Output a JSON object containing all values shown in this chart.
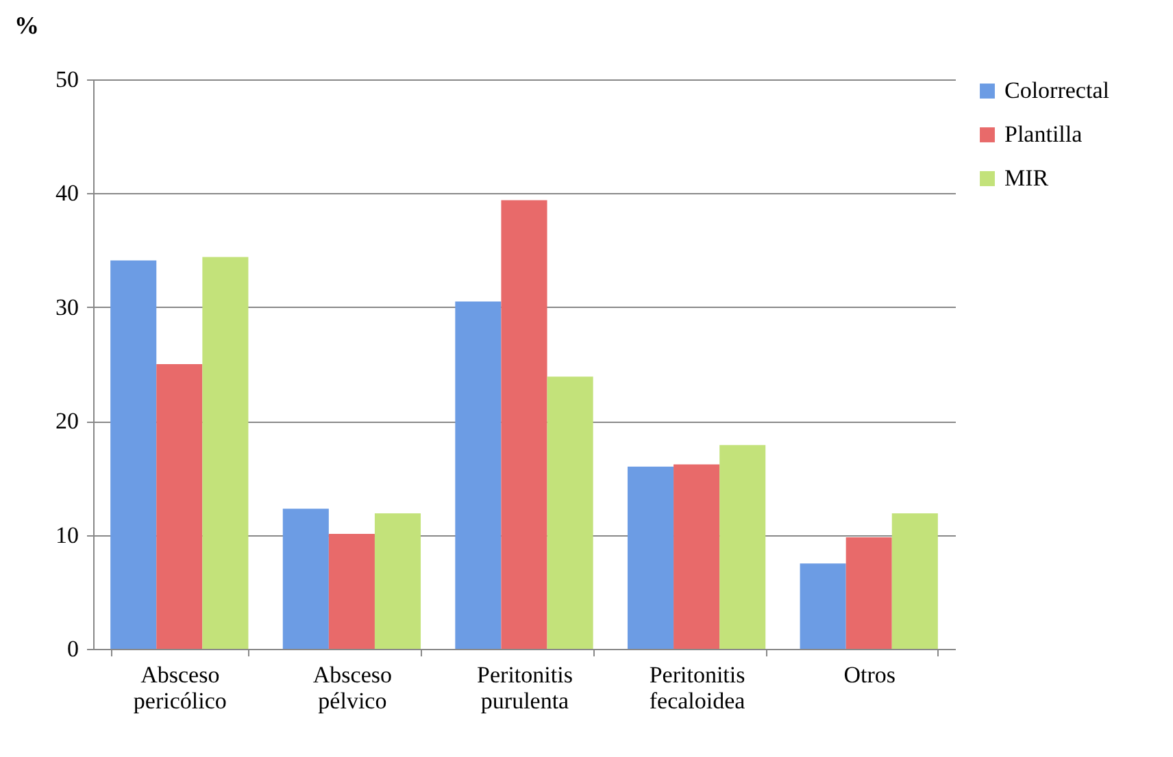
{
  "chart_data": {
    "type": "bar",
    "ylabel": "%",
    "categories": [
      "Absceso pericólico",
      "Absceso pélvico",
      "Peritonitis purulenta",
      "Peritonitis fecaloidea",
      "Otros"
    ],
    "series": [
      {
        "name": "Colorrectal",
        "color": "#6c9ce4",
        "values": [
          34.1,
          12.3,
          30.5,
          16,
          7.5
        ]
      },
      {
        "name": "Plantilla",
        "color": "#e86a6a",
        "values": [
          25,
          10.1,
          39.4,
          16.2,
          9.8
        ]
      },
      {
        "name": "MIR",
        "color": "#c3e27a",
        "values": [
          34.4,
          11.9,
          23.9,
          17.9,
          11.9
        ]
      }
    ],
    "ylim": [
      0,
      50
    ],
    "yticks": [
      0,
      10,
      20,
      30,
      40,
      50
    ],
    "grid": "y",
    "legend": "right"
  }
}
